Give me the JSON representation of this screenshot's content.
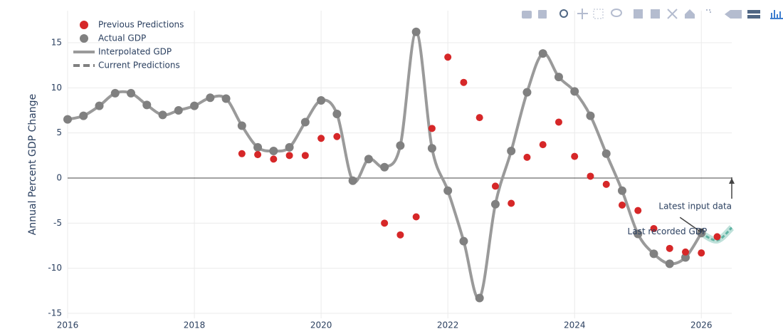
{
  "chart_data": {
    "type": "scatter",
    "y_axis_title": "Annual Percent GDP Change",
    "xlim": [
      2016,
      2026.48
    ],
    "xticks": [
      2016,
      2018,
      2020,
      2022,
      2024,
      2026
    ],
    "ylim": [
      -15.55,
      18.55
    ],
    "yticks": [
      -15,
      -10,
      -5,
      0,
      5,
      10,
      15
    ],
    "grid": true,
    "legend": "top-left",
    "series": [
      {
        "name": "Previous Predictions",
        "mode": "markers",
        "color": "#d62728",
        "x": [
          2018.75,
          2019,
          2019.25,
          2019.5,
          2019.75,
          2020,
          2020.25,
          2021,
          2021.25,
          2021.5,
          2021.75,
          2022,
          2022.25,
          2022.5,
          2022.75,
          2023,
          2023.25,
          2023.5,
          2023.75,
          2024,
          2024.25,
          2024.5,
          2024.75,
          2025,
          2025.25,
          2025.5,
          2025.75,
          2026,
          2026.25
        ],
        "values": [
          2.7,
          2.6,
          2.1,
          2.5,
          2.5,
          4.4,
          4.6,
          -5.0,
          -6.3,
          -4.3,
          5.5,
          13.4,
          10.6,
          6.7,
          -0.9,
          -2.8,
          2.3,
          3.7,
          6.2,
          2.4,
          0.2,
          -0.7,
          -3.0,
          -3.6,
          -5.6,
          -7.8,
          -8.2,
          -8.3,
          -6.5
        ]
      },
      {
        "name": "Actual GDP",
        "mode": "markers",
        "color": "#808080",
        "x": [
          2016,
          2016.25,
          2016.5,
          2016.75,
          2017,
          2017.25,
          2017.5,
          2017.75,
          2018,
          2018.25,
          2018.5,
          2018.75,
          2019,
          2019.25,
          2019.5,
          2019.75,
          2020,
          2020.25,
          2020.5,
          2020.75,
          2021,
          2021.25,
          2021.5,
          2021.75,
          2022,
          2022.25,
          2022.5,
          2022.75,
          2023,
          2023.25,
          2023.5,
          2023.75,
          2024,
          2024.25,
          2024.5,
          2024.75,
          2025,
          2025.25,
          2025.5,
          2025.75,
          2026
        ],
        "values": [
          6.5,
          6.9,
          8.0,
          9.4,
          9.4,
          8.1,
          7.0,
          7.5,
          8.0,
          8.9,
          8.8,
          5.8,
          3.4,
          3.0,
          3.4,
          6.2,
          8.6,
          7.1,
          -0.3,
          2.1,
          1.2,
          3.6,
          16.2,
          3.3,
          -1.4,
          -7.0,
          -13.3,
          -2.9,
          3.0,
          9.5,
          13.8,
          11.2,
          9.6,
          6.9,
          2.7,
          -1.4,
          -6.2,
          -8.4,
          -9.5,
          -8.8,
          -6.1
        ]
      },
      {
        "name": "Interpolated GDP",
        "mode": "spline",
        "color": "#9a9a9a",
        "x": [
          2016,
          2016.25,
          2016.5,
          2016.75,
          2017,
          2017.25,
          2017.5,
          2017.75,
          2018,
          2018.25,
          2018.5,
          2018.75,
          2019,
          2019.25,
          2019.5,
          2019.75,
          2020,
          2020.25,
          2020.5,
          2020.75,
          2021,
          2021.25,
          2021.5,
          2021.75,
          2022,
          2022.25,
          2022.5,
          2022.75,
          2023,
          2023.25,
          2023.5,
          2023.75,
          2024,
          2024.25,
          2024.5,
          2024.75,
          2025,
          2025.25,
          2025.5,
          2025.75,
          2026
        ],
        "values": [
          6.5,
          6.9,
          8.0,
          9.4,
          9.4,
          8.1,
          7.0,
          7.5,
          8.0,
          8.9,
          8.8,
          5.8,
          3.4,
          3.0,
          3.4,
          6.2,
          8.6,
          7.1,
          -0.3,
          2.1,
          1.2,
          3.6,
          16.2,
          3.3,
          -1.4,
          -7.0,
          -13.3,
          -2.9,
          3.0,
          9.5,
          13.8,
          11.2,
          9.6,
          6.9,
          2.7,
          -1.4,
          -6.2,
          -8.4,
          -9.5,
          -8.8,
          -6.1
        ]
      },
      {
        "name": "Current Predictions",
        "mode": "dash",
        "color": "#5fb3a3",
        "legend_color": "#808080",
        "x": [
          2026,
          2026.25,
          2026.48
        ],
        "values": [
          -6.1,
          -6.9,
          -5.5
        ]
      }
    ],
    "annotations": [
      {
        "text": "Last recorded GDP",
        "x": 2026,
        "y": -6.1
      },
      {
        "text": "Latest input data",
        "x": 2026.48,
        "y": 0
      }
    ]
  }
}
